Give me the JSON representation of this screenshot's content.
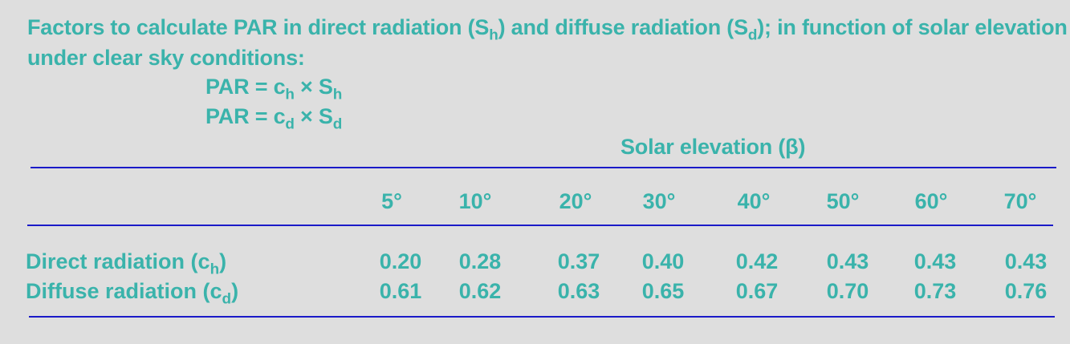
{
  "title": {
    "part1": "Factors to calculate PAR  in direct radiation (S",
    "sub1": "h",
    "part2": ") and diffuse radiation (S",
    "sub2": "d",
    "part3": "); in function of solar elevation  (β)",
    "line2": "under clear sky conditions:"
  },
  "formulas": [
    {
      "lhs": "PAR = c",
      "c_sub": "h",
      "op": " × S",
      "s_sub": "h"
    },
    {
      "lhs": "PAR = c",
      "c_sub": "d",
      "op": " × S",
      "s_sub": "d"
    }
  ],
  "table": {
    "group_header": "Solar elevation (β)",
    "columns": [
      "5°",
      "10°",
      "20°",
      "30°",
      "40°",
      "50°",
      "60°",
      "70°"
    ],
    "rows": [
      {
        "label": "Direct radiation (c",
        "label_sub": "h",
        "label_end": ")",
        "values": [
          "0.20",
          "0.28",
          "0.37",
          "0.40",
          "0.42",
          "0.43",
          "0.43",
          "0.43"
        ]
      },
      {
        "label": "Diffuse radiation (c",
        "label_sub": "d",
        "label_end": ")",
        "values": [
          "0.61",
          "0.62",
          "0.63",
          "0.65",
          "0.67",
          "0.70",
          "0.73",
          "0.76"
        ]
      }
    ]
  },
  "colors": {
    "text": "#3ab3ab",
    "rule": "#1a1ac8",
    "background": "#dedede"
  }
}
